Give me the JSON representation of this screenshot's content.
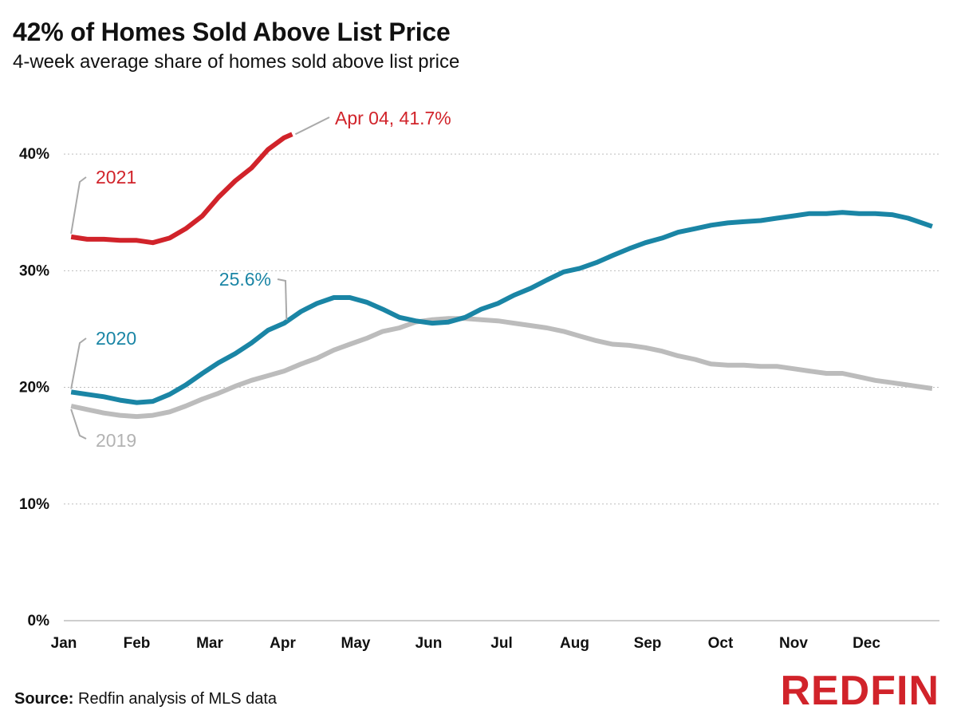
{
  "title": "42% of Homes Sold Above List Price",
  "subtitle": "4-week average share of homes sold above list price",
  "source_label": "Source:",
  "source_text": "Redfin analysis of MLS data",
  "logo_text": "REDFIN",
  "colors": {
    "y2021": "#d1232a",
    "y2020": "#1a85a5",
    "y2019": "#bcbcbc",
    "logo": "#d1232a",
    "grid": "#bdbdbd"
  },
  "chart_data": {
    "type": "line",
    "title": "42% of Homes Sold Above List Price",
    "subtitle": "4-week average share of homes sold above list price",
    "xlabel": "",
    "ylabel": "",
    "x_unit": "month (0 = Jan 1, 12 = Dec 31)",
    "xlim": [
      0,
      12
    ],
    "ylim": [
      0,
      45
    ],
    "yticks": [
      0,
      10,
      20,
      30,
      40
    ],
    "ytick_labels": [
      "0%",
      "10%",
      "20%",
      "30%",
      "40%"
    ],
    "xtick_labels": [
      "Jan",
      "Feb",
      "Mar",
      "Apr",
      "May",
      "Jun",
      "Jul",
      "Aug",
      "Sep",
      "Oct",
      "Nov",
      "Dec"
    ],
    "grid": true,
    "series": [
      {
        "name": "2019",
        "label": "2019",
        "color": "#bcbcbc",
        "x": [
          0.1,
          0.32,
          0.55,
          0.77,
          1.0,
          1.22,
          1.45,
          1.67,
          1.9,
          2.12,
          2.35,
          2.57,
          2.8,
          3.02,
          3.25,
          3.47,
          3.7,
          3.92,
          4.15,
          4.37,
          4.6,
          4.82,
          5.05,
          5.27,
          5.5,
          5.72,
          5.95,
          6.17,
          6.4,
          6.62,
          6.85,
          7.07,
          7.3,
          7.52,
          7.75,
          7.97,
          8.2,
          8.42,
          8.65,
          8.87,
          9.1,
          9.32,
          9.55,
          9.77,
          10.0,
          10.22,
          10.45,
          10.67,
          10.9,
          11.12,
          11.35,
          11.57,
          11.9
        ],
        "values": [
          18.4,
          18.1,
          17.8,
          17.6,
          17.5,
          17.6,
          17.9,
          18.4,
          19.0,
          19.5,
          20.1,
          20.6,
          21.0,
          21.4,
          22.0,
          22.5,
          23.2,
          23.7,
          24.2,
          24.8,
          25.1,
          25.6,
          25.8,
          25.9,
          25.9,
          25.8,
          25.7,
          25.5,
          25.3,
          25.1,
          24.8,
          24.4,
          24.0,
          23.7,
          23.6,
          23.4,
          23.1,
          22.7,
          22.4,
          22.0,
          21.9,
          21.9,
          21.8,
          21.8,
          21.6,
          21.4,
          21.2,
          21.2,
          20.9,
          20.6,
          20.4,
          20.2,
          19.9
        ]
      },
      {
        "name": "2020",
        "label": "2020",
        "annotation": "25.6%",
        "color": "#1a85a5",
        "x": [
          0.1,
          0.32,
          0.55,
          0.77,
          1.0,
          1.22,
          1.45,
          1.67,
          1.9,
          2.12,
          2.35,
          2.57,
          2.8,
          3.02,
          3.25,
          3.47,
          3.7,
          3.92,
          4.15,
          4.37,
          4.6,
          4.82,
          5.05,
          5.27,
          5.5,
          5.72,
          5.95,
          6.17,
          6.4,
          6.62,
          6.85,
          7.07,
          7.3,
          7.52,
          7.75,
          7.97,
          8.2,
          8.42,
          8.65,
          8.87,
          9.1,
          9.32,
          9.55,
          9.77,
          10.0,
          10.22,
          10.45,
          10.67,
          10.9,
          11.12,
          11.35,
          11.57,
          11.9
        ],
        "values": [
          19.6,
          19.4,
          19.2,
          18.9,
          18.7,
          18.8,
          19.4,
          20.2,
          21.2,
          22.1,
          22.9,
          23.8,
          24.9,
          25.5,
          26.5,
          27.2,
          27.7,
          27.7,
          27.3,
          26.7,
          26.0,
          25.7,
          25.5,
          25.6,
          26.0,
          26.7,
          27.2,
          27.9,
          28.5,
          29.2,
          29.9,
          30.2,
          30.7,
          31.3,
          31.9,
          32.4,
          32.8,
          33.3,
          33.6,
          33.9,
          34.1,
          34.2,
          34.3,
          34.5,
          34.7,
          34.9,
          34.9,
          35.0,
          34.9,
          34.9,
          34.8,
          34.5,
          33.8
        ]
      },
      {
        "name": "2021",
        "label": "2021",
        "annotation": "Apr 04, 41.7%",
        "color": "#d1232a",
        "x": [
          0.1,
          0.32,
          0.55,
          0.77,
          1.0,
          1.22,
          1.45,
          1.67,
          1.9,
          2.12,
          2.35,
          2.57,
          2.8,
          3.02,
          3.13
        ],
        "values": [
          32.9,
          32.7,
          32.7,
          32.6,
          32.6,
          32.4,
          32.8,
          33.6,
          34.7,
          36.3,
          37.7,
          38.8,
          40.4,
          41.4,
          41.7
        ]
      }
    ]
  }
}
